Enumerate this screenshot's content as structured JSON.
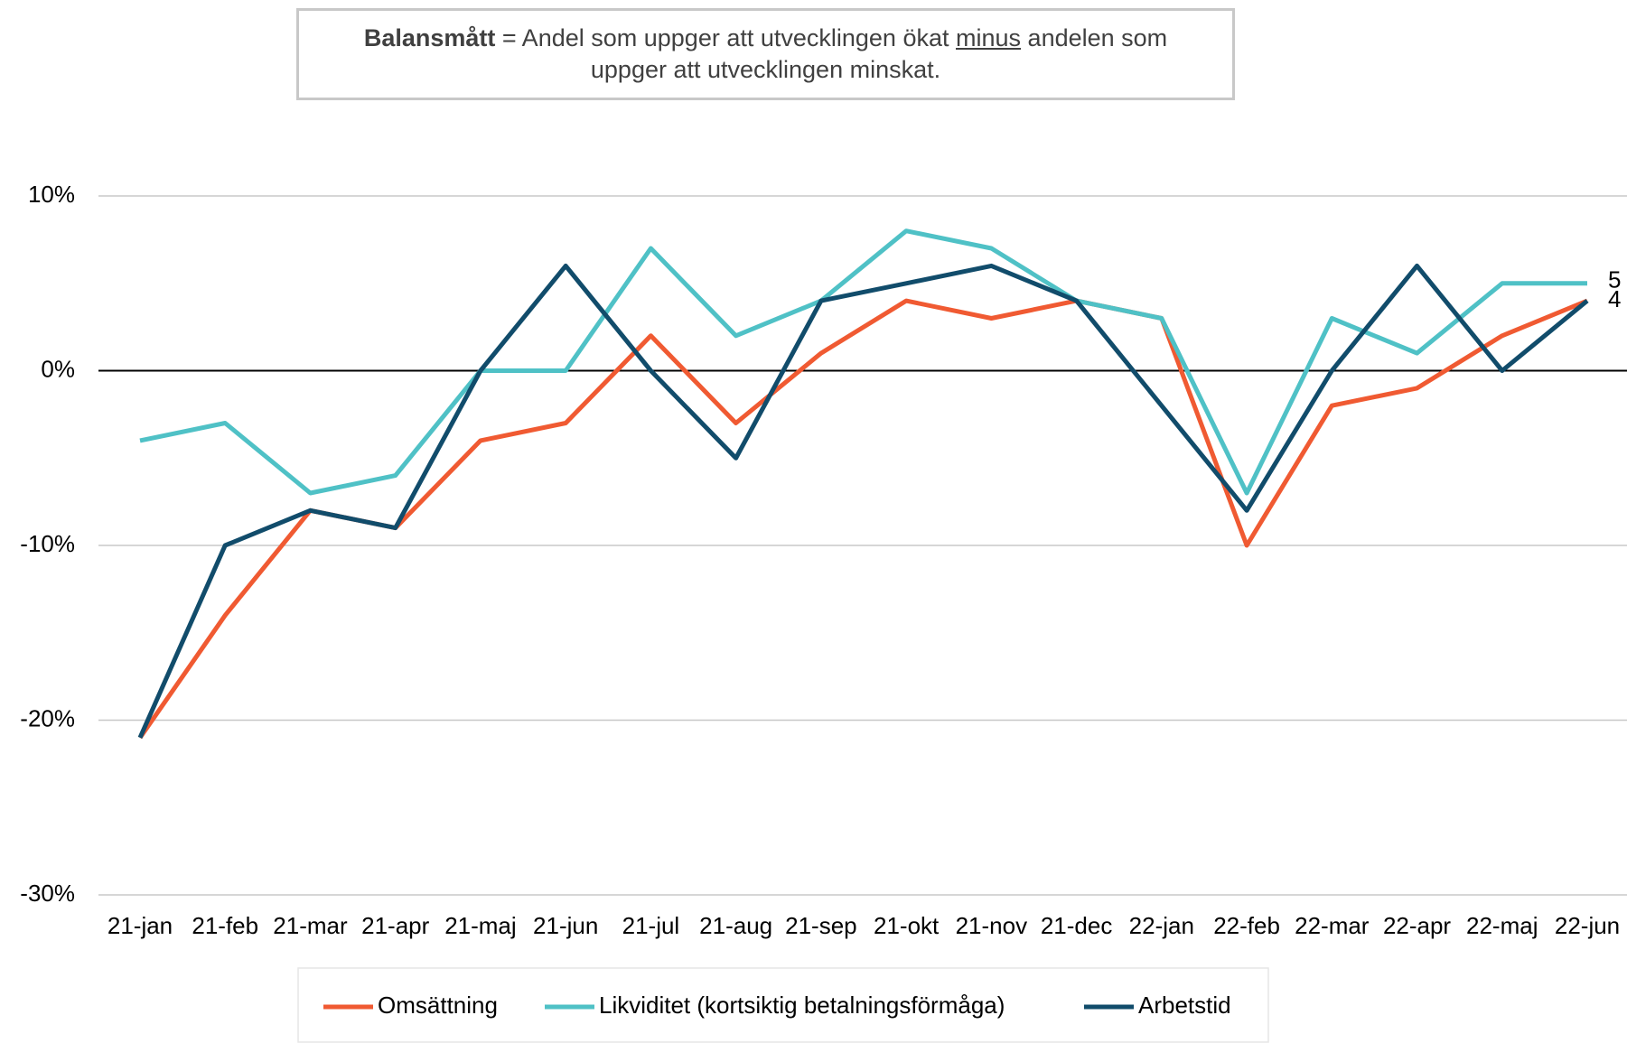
{
  "chart_data": {
    "type": "line",
    "annotation": [
      "Balansmått",
      "= Andel som uppger att utvecklingen ökat",
      "minus",
      "andelen som uppger att utvecklingen minskat."
    ],
    "categories": [
      "21-jan",
      "21-feb",
      "21-mar",
      "21-apr",
      "21-maj",
      "21-jun",
      "21-jul",
      "21-aug",
      "21-sep",
      "21-okt",
      "21-nov",
      "21-dec",
      "22-jan",
      "22-feb",
      "22-mar",
      "22-apr",
      "22-maj",
      "22-jun"
    ],
    "series": [
      {
        "name": "Omsättning",
        "color": "#f05a32",
        "values": [
          -21,
          -14,
          -8,
          -9,
          -4,
          -3,
          2,
          -3,
          1,
          4,
          3,
          4,
          3,
          -10,
          -2,
          -1,
          2,
          4
        ]
      },
      {
        "name": "Likviditet (kortsiktig betalningsförmåga)",
        "color": "#4fc1c6",
        "label_last": true,
        "values": [
          -4,
          -3,
          -7,
          -6,
          0,
          0,
          7,
          2,
          4,
          8,
          7,
          4,
          3,
          -7,
          3,
          1,
          5,
          5
        ]
      },
      {
        "name": "Arbetstid",
        "color": "#114c6b",
        "label_last": true,
        "values": [
          -21,
          -10,
          -8,
          -9,
          0,
          6,
          0,
          -5,
          4,
          5,
          6,
          4,
          -2,
          -8,
          0,
          6,
          0,
          4
        ]
      }
    ],
    "ylim": [
      -30,
      10
    ],
    "yticks": [
      {
        "value": -30,
        "label": "-30%"
      },
      {
        "value": -20,
        "label": "-20%"
      },
      {
        "value": -10,
        "label": "-10%"
      },
      {
        "value": 0,
        "label": "0%"
      },
      {
        "value": 10,
        "label": "10%"
      }
    ],
    "grid": true
  }
}
